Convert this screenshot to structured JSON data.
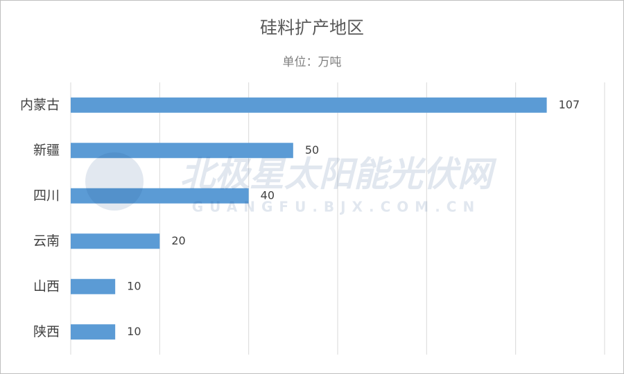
{
  "chart_data": {
    "type": "hbar",
    "title": "硅料扩产地区",
    "subtitle": "单位：万吨",
    "categories": [
      "内蒙古",
      "新疆",
      "四川",
      "云南",
      "山西",
      "陕西"
    ],
    "values": [
      107,
      50,
      40,
      20,
      10,
      10
    ],
    "color": "#5b9bd5",
    "xlim": [
      0,
      120
    ],
    "xticks": [
      0,
      20,
      40,
      60,
      80,
      100,
      120
    ],
    "grid": true
  },
  "watermark": {
    "name": "北极星太阳能光伏网",
    "url": "GUANGFU.BJX.COM.CN"
  }
}
